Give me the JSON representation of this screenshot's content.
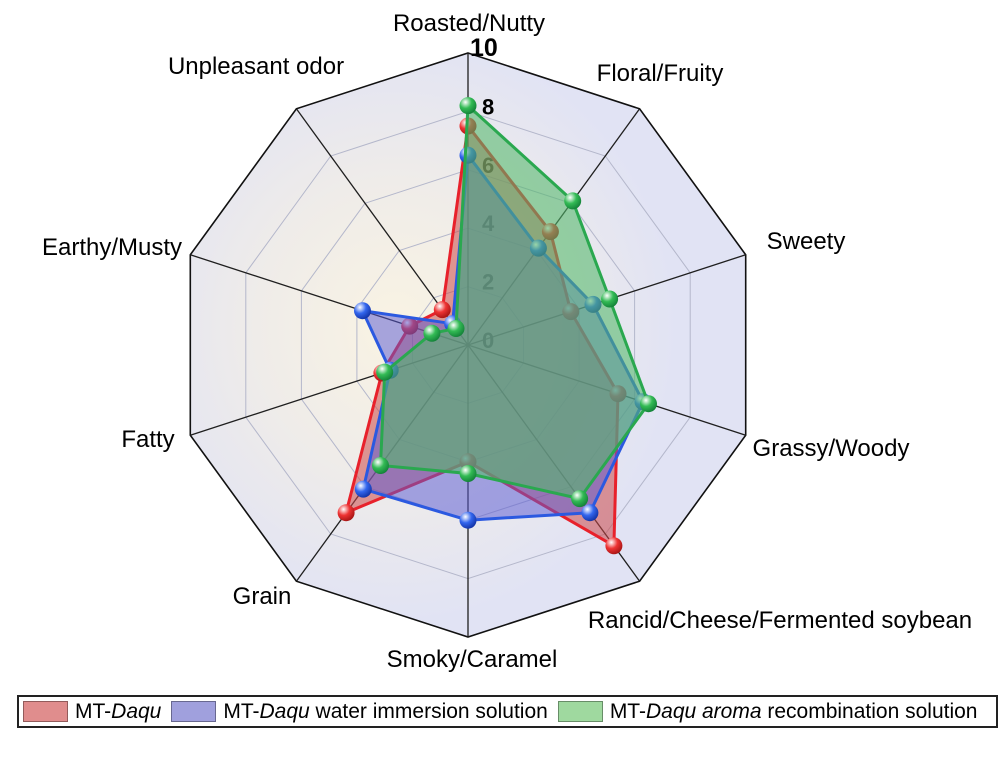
{
  "chart_data": {
    "type": "radar",
    "title": "",
    "axes": [
      "Roasted/Nutty",
      "Floral/Fruity",
      "Sweety",
      "Grassy/Woody",
      "Rancid/Cheese/Fermented soybean",
      "Smoky/Caramel",
      "Grain",
      "Fatty",
      "Earthy/Musty",
      "Unpleasant odor"
    ],
    "r_ticks": [
      0,
      2,
      4,
      6,
      8,
      10
    ],
    "r_max": 10,
    "grid": {
      "ring_color": "#b4b7cb",
      "spoke_color": "#1f1f1f",
      "outline_color": "#111111",
      "bg_inner": "#f9f3e3",
      "bg_mid": "#efece9",
      "bg_outer": "#e1e3f4"
    },
    "tick_color": "#000000",
    "legend_position": "bottom",
    "series": [
      {
        "name": "MT-Daqu",
        "line_color": "#e8212b",
        "fill_color": "#cc4848",
        "fill_opacity": 0.55,
        "marker_mid": "#ee3333",
        "marker_edge": "#990f0f",
        "values": [
          7.5,
          4.8,
          3.7,
          5.4,
          8.5,
          4.0,
          7.1,
          3.1,
          2.1,
          1.5
        ]
      },
      {
        "name": "MT-Daqu water immersion solution",
        "line_color": "#2b59e0",
        "fill_color": "#5a5ad2",
        "fill_opacity": 0.52,
        "marker_mid": "#3366ee",
        "marker_edge": "#0d2a99",
        "values": [
          6.5,
          4.1,
          4.5,
          6.3,
          7.1,
          6.0,
          6.1,
          2.8,
          3.8,
          0.9
        ]
      },
      {
        "name": "MT-Daqu aroma recombination solution",
        "line_color": "#2aa84f",
        "fill_color": "#52b96a",
        "fill_opacity": 0.58,
        "marker_mid": "#33bb55",
        "marker_edge": "#0d7733",
        "values": [
          8.2,
          6.1,
          5.1,
          6.5,
          6.5,
          4.4,
          5.1,
          3.0,
          1.3,
          0.7
        ]
      }
    ]
  },
  "legend": {
    "entries": [
      {
        "prefix": "MT-",
        "italic": "Daqu",
        "suffix": "",
        "swatch_color": "#e08d8d"
      },
      {
        "prefix": "MT-",
        "italic": "Daqu",
        "suffix": " water immersion solution",
        "swatch_color": "#a0a0dd"
      },
      {
        "prefix": "MT-",
        "italic": "Daqu aroma",
        "suffix": " recombination solution",
        "swatch_color": "#9fd99f"
      }
    ]
  }
}
